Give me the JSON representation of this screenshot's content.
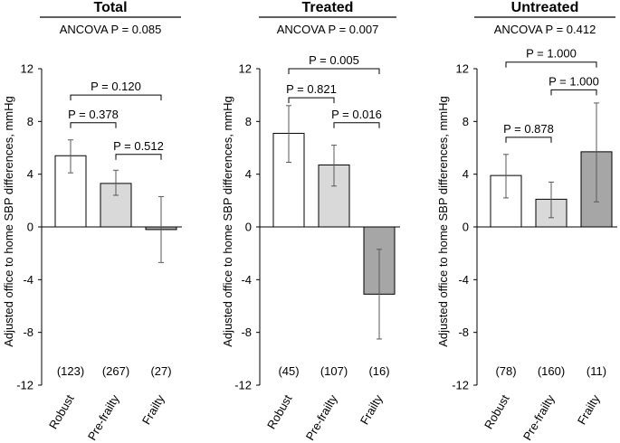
{
  "chart_data": [
    {
      "type": "bar",
      "title": "Total",
      "subtitle": "ANCOVA P = 0.085",
      "ylabel": "Adjusted office to home SBP differences, mmHg",
      "ylim": [
        -12,
        12
      ],
      "yticks": [
        "12",
        "8",
        "4",
        "0",
        "-4",
        "-8",
        "-12"
      ],
      "categories": [
        "Robust",
        "Pre-frailty",
        "Frailty"
      ],
      "values": [
        5.4,
        3.3,
        -0.2
      ],
      "error_low": [
        4.1,
        2.4,
        -2.7
      ],
      "error_high": [
        6.6,
        4.3,
        2.3
      ],
      "bar_colors": [
        "#ffffff",
        "#d9d9d9",
        "#a6a6a6"
      ],
      "n_labels": [
        "(123)",
        "(267)",
        "(27)"
      ],
      "comparisons": [
        {
          "from": 0,
          "to": 2,
          "label": "P = 0.120",
          "level": 10.0
        },
        {
          "from": 0,
          "to": 1,
          "label": "P = 0.378",
          "level": 7.9
        },
        {
          "from": 1,
          "to": 2,
          "label": "P = 0.512",
          "level": 5.5
        }
      ]
    },
    {
      "type": "bar",
      "title": "Treated",
      "subtitle": "ANCOVA P = 0.007",
      "ylabel": "Adjusted office to home SBP differences, mmHg",
      "ylim": [
        -12,
        12
      ],
      "yticks": [
        "12",
        "8",
        "4",
        "0",
        "-4",
        "-8",
        "-12"
      ],
      "categories": [
        "Robust",
        "Pre-frailty",
        "Frailty"
      ],
      "values": [
        7.1,
        4.7,
        -5.1
      ],
      "error_low": [
        4.9,
        3.1,
        -8.5
      ],
      "error_high": [
        9.2,
        6.2,
        -1.7
      ],
      "bar_colors": [
        "#ffffff",
        "#d9d9d9",
        "#a6a6a6"
      ],
      "n_labels": [
        "(45)",
        "(107)",
        "(16)"
      ],
      "comparisons": [
        {
          "from": 0,
          "to": 2,
          "label": "P = 0.005",
          "level": 12.0
        },
        {
          "from": 0,
          "to": 1,
          "label": "P = 0.821",
          "level": 9.8
        },
        {
          "from": 1,
          "to": 2,
          "label": "P = 0.016",
          "level": 7.9
        }
      ]
    },
    {
      "type": "bar",
      "title": "Untreated",
      "subtitle": "ANCOVA P = 0.412",
      "ylabel": "Adjusted office to home SBP differences, mmHg",
      "ylim": [
        -12,
        12
      ],
      "yticks": [
        "12",
        "8",
        "4",
        "0",
        "-4",
        "-8",
        "-12"
      ],
      "categories": [
        "Robust",
        "Pre-frailty",
        "Frailty"
      ],
      "values": [
        3.9,
        2.1,
        5.7
      ],
      "error_low": [
        2.2,
        0.7,
        1.9
      ],
      "error_high": [
        5.5,
        3.4,
        9.4
      ],
      "bar_colors": [
        "#ffffff",
        "#d9d9d9",
        "#a6a6a6"
      ],
      "n_labels": [
        "(78)",
        "(160)",
        "(11)"
      ],
      "comparisons": [
        {
          "from": 0,
          "to": 2,
          "label": "P = 1.000",
          "level": 12.5
        },
        {
          "from": 1,
          "to": 2,
          "label": "P = 1.000",
          "level": 10.4
        },
        {
          "from": 0,
          "to": 1,
          "label": "P = 0.878",
          "level": 6.8
        }
      ]
    }
  ]
}
